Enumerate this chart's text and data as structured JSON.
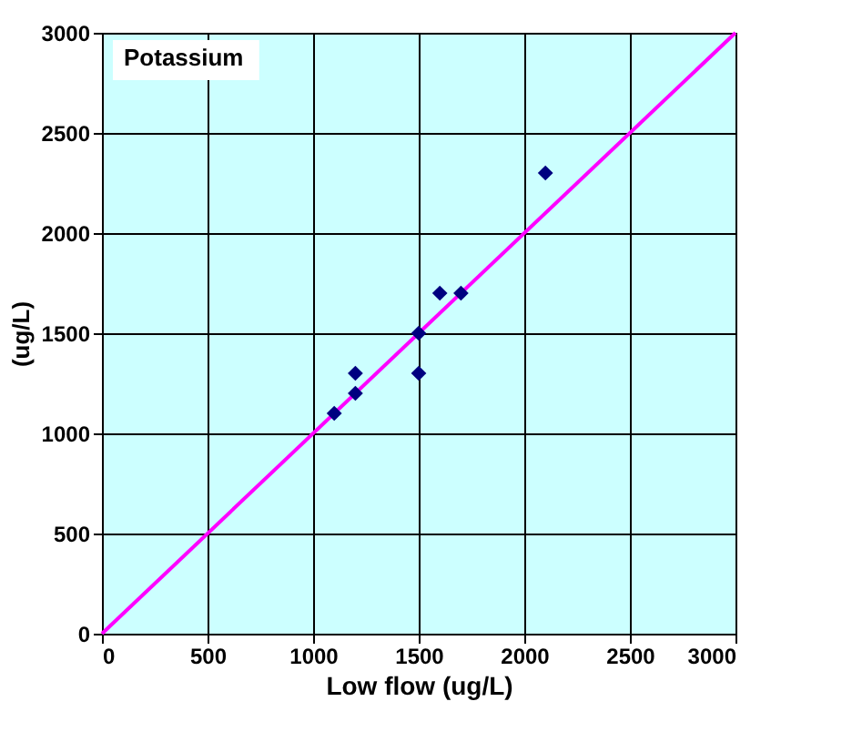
{
  "chart_data": {
    "type": "scatter",
    "xlabel": "Low flow (ug/L)",
    "ylabel": "(ug/L)",
    "annotations": [
      "Potassium"
    ],
    "series": [
      {
        "color": "#000080",
        "x": [
          1100,
          1200,
          1200,
          1500,
          1500,
          1600,
          1700,
          2100
        ],
        "values": [
          1100,
          1200,
          1300,
          1500,
          1300,
          1700,
          1700,
          2300
        ],
        "marker": "diamond"
      },
      {
        "type": "line",
        "color": "#ff00ff",
        "x": [
          0,
          3000
        ],
        "values": [
          0,
          3000
        ]
      }
    ],
    "xlim": [
      0,
      3000
    ],
    "ylim": [
      0,
      3000
    ],
    "xticks": [
      0,
      500,
      1000,
      1500,
      2000,
      2500,
      3000
    ],
    "yticks": [
      0,
      500,
      1000,
      1500,
      2000,
      2500,
      3000
    ],
    "grid": true
  }
}
